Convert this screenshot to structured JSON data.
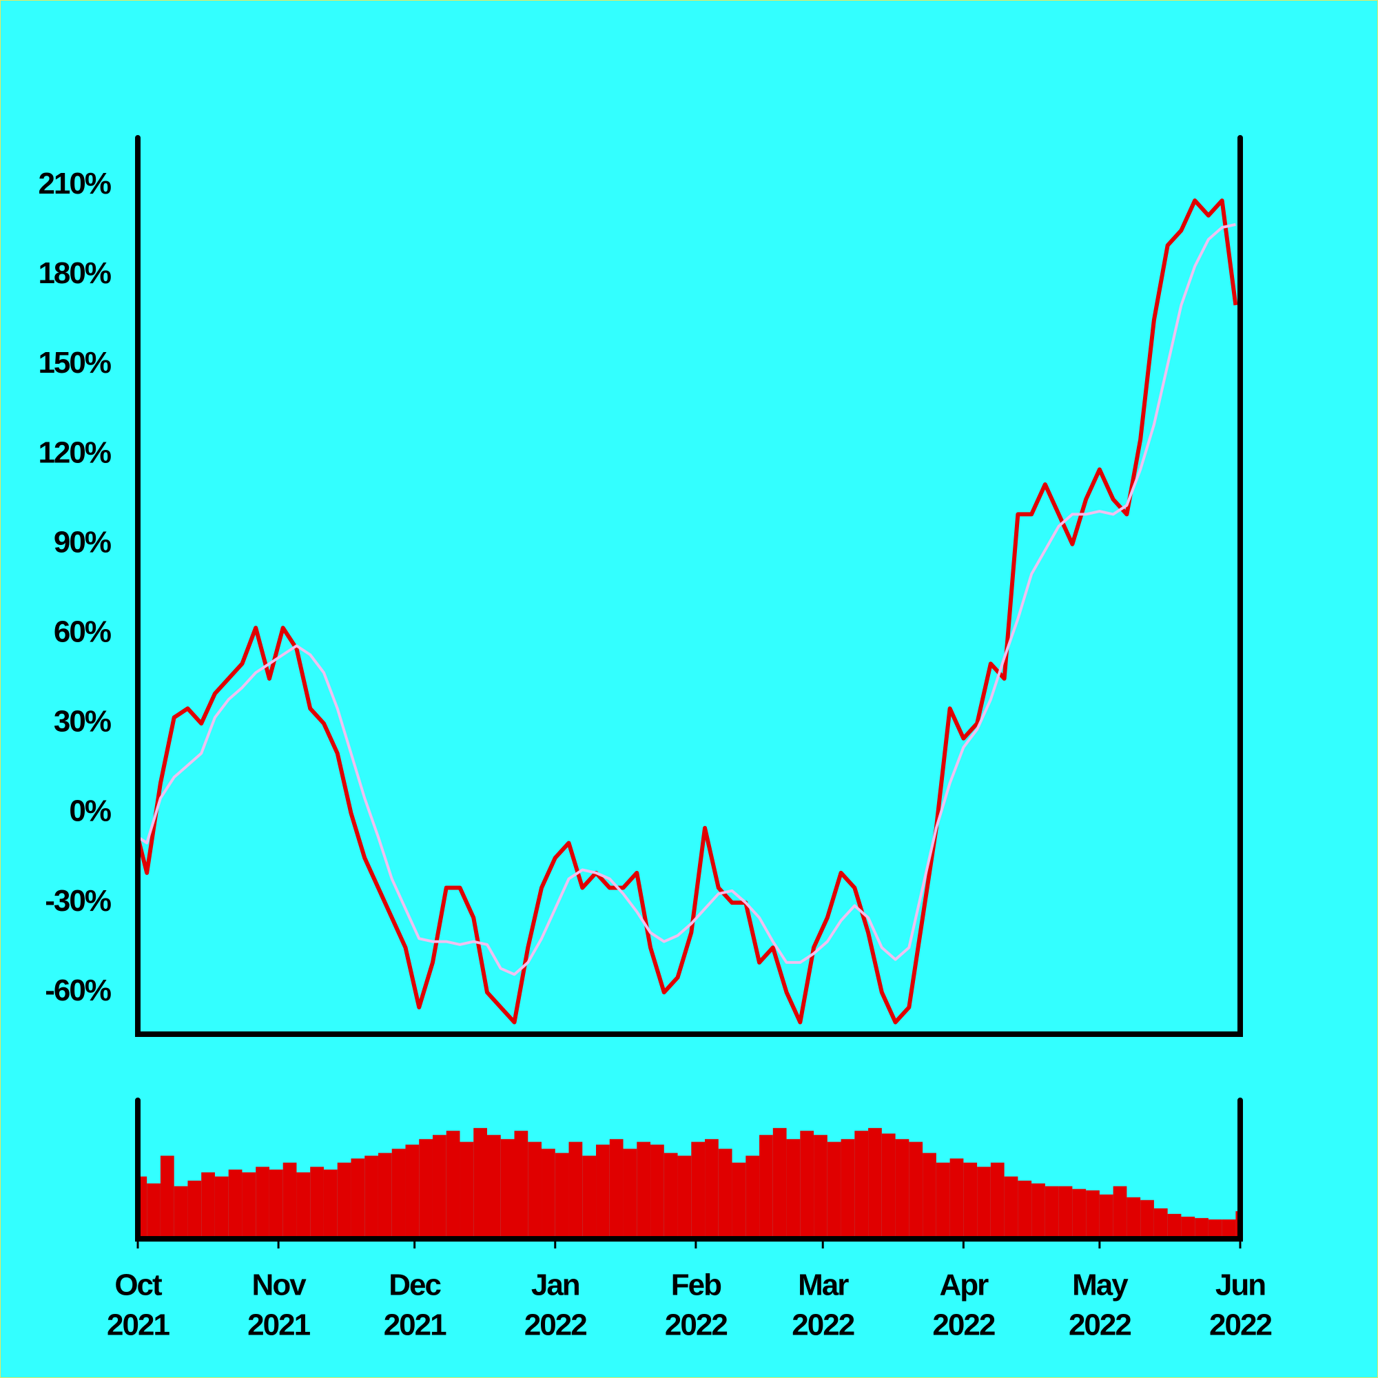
{
  "chart_data": [
    {
      "type": "line",
      "x": [
        0,
        2,
        5,
        8,
        11,
        14,
        17,
        20,
        23,
        26,
        29,
        32,
        35,
        38,
        41,
        44,
        47,
        50,
        53,
        56,
        59,
        62,
        65,
        68,
        71,
        74,
        77,
        80,
        83,
        86,
        89,
        92,
        95,
        98,
        101,
        104,
        107,
        110,
        113,
        116,
        119,
        122,
        125,
        128,
        131,
        134,
        137,
        140,
        143,
        146,
        149,
        152,
        155,
        158,
        161,
        164,
        167,
        170,
        173,
        176,
        179,
        182,
        185,
        188,
        191,
        194,
        197,
        200,
        203,
        206,
        209,
        212,
        215,
        218,
        221,
        224,
        227,
        230,
        233,
        236,
        239,
        242
      ],
      "series": [
        {
          "color": "#e00000",
          "values": [
            -8,
            -20,
            10,
            32,
            35,
            30,
            40,
            45,
            50,
            62,
            45,
            62,
            55,
            35,
            30,
            20,
            0,
            -15,
            -25,
            -35,
            -45,
            -65,
            -50,
            -25,
            -25,
            -35,
            -60,
            -65,
            -70,
            -45,
            -25,
            -15,
            -10,
            -25,
            -20,
            -25,
            -25,
            -20,
            -45,
            -60,
            -55,
            -40,
            -5,
            -25,
            -30,
            -30,
            -50,
            -45,
            -60,
            -70,
            -45,
            -35,
            -20,
            -25,
            -40,
            -60,
            -70,
            -65,
            -35,
            -5,
            35,
            25,
            30,
            50,
            45,
            100,
            100,
            110,
            100,
            90,
            105,
            115,
            105,
            100,
            125,
            165,
            190,
            195,
            205,
            200,
            205,
            170
          ]
        },
        {
          "color": "#f0c0f0",
          "values": [
            -8,
            -10,
            5,
            12,
            16,
            20,
            32,
            38,
            42,
            47,
            50,
            53,
            56,
            53,
            47,
            35,
            20,
            5,
            -8,
            -22,
            -32,
            -42,
            -43,
            -43,
            -44,
            -43,
            -44,
            -52,
            -54,
            -50,
            -42,
            -32,
            -22,
            -19,
            -20,
            -22,
            -27,
            -33,
            -40,
            -43,
            -41,
            -37,
            -32,
            -27,
            -26,
            -30,
            -35,
            -43,
            -50,
            -50,
            -47,
            -43,
            -36,
            -31,
            -35,
            -45,
            -49,
            -45,
            -25,
            -5,
            10,
            22,
            28,
            38,
            52,
            65,
            80,
            88,
            96,
            100,
            100,
            101,
            100,
            103,
            115,
            130,
            150,
            170,
            183,
            192,
            196,
            197
          ]
        }
      ],
      "xlim": [
        0,
        243
      ],
      "ylim": [
        -74,
        226
      ],
      "yticks": [
        {
          "value": -60,
          "label": "-60%"
        },
        {
          "value": -30,
          "label": "-30%"
        },
        {
          "value": 0,
          "label": "0%"
        },
        {
          "value": 30,
          "label": "30%"
        },
        {
          "value": 60,
          "label": "60%"
        },
        {
          "value": 90,
          "label": "90%"
        },
        {
          "value": 120,
          "label": "120%"
        },
        {
          "value": 150,
          "label": "150%"
        },
        {
          "value": 180,
          "label": "180%"
        },
        {
          "value": 210,
          "label": "210%"
        }
      ]
    },
    {
      "type": "bar",
      "x": [
        0,
        2,
        5,
        8,
        11,
        14,
        17,
        20,
        23,
        26,
        29,
        32,
        35,
        38,
        41,
        44,
        47,
        50,
        53,
        56,
        59,
        62,
        65,
        68,
        71,
        74,
        77,
        80,
        83,
        86,
        89,
        92,
        95,
        98,
        101,
        104,
        107,
        110,
        113,
        116,
        119,
        122,
        125,
        128,
        131,
        134,
        137,
        140,
        143,
        146,
        149,
        152,
        155,
        158,
        161,
        164,
        167,
        170,
        173,
        176,
        179,
        182,
        185,
        188,
        191,
        194,
        197,
        200,
        203,
        206,
        209,
        212,
        215,
        218,
        221,
        224,
        227,
        230,
        233,
        236,
        239,
        242
      ],
      "values": [
        45,
        40,
        60,
        38,
        42,
        48,
        45,
        50,
        48,
        52,
        50,
        55,
        48,
        52,
        50,
        55,
        58,
        60,
        62,
        65,
        68,
        72,
        75,
        78,
        70,
        80,
        75,
        72,
        78,
        70,
        65,
        62,
        70,
        60,
        68,
        72,
        65,
        70,
        68,
        62,
        60,
        70,
        72,
        65,
        55,
        60,
        75,
        80,
        72,
        78,
        75,
        70,
        72,
        78,
        80,
        76,
        72,
        70,
        62,
        55,
        58,
        55,
        52,
        55,
        45,
        42,
        40,
        38,
        38,
        36,
        35,
        32,
        38,
        30,
        28,
        22,
        18,
        16,
        15,
        14,
        14,
        20
      ],
      "color": "#e00000",
      "xlim": [
        0,
        243
      ],
      "ylim": [
        0,
        100
      ],
      "xticks": [
        {
          "value": 0,
          "label": [
            "Oct",
            "2021"
          ]
        },
        {
          "value": 31,
          "label": [
            "Nov",
            "2021"
          ]
        },
        {
          "value": 61,
          "label": [
            "Dec",
            "2021"
          ]
        },
        {
          "value": 92,
          "label": [
            "Jan",
            "2022"
          ]
        },
        {
          "value": 123,
          "label": [
            "Feb",
            "2022"
          ]
        },
        {
          "value": 151,
          "label": [
            "Mar",
            "2022"
          ]
        },
        {
          "value": 182,
          "label": [
            "Apr",
            "2022"
          ]
        },
        {
          "value": 212,
          "label": [
            "May",
            "2022"
          ]
        },
        {
          "value": 243,
          "label": [
            "Jun",
            "2022"
          ]
        }
      ]
    }
  ]
}
